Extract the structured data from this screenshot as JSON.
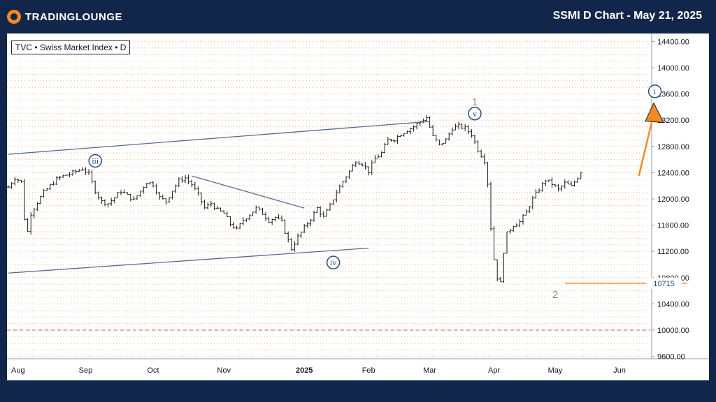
{
  "header": {
    "brand": "TRADINGLOUNGE",
    "title": "SSMI D Chart - May 21, 2025"
  },
  "symbol_label": "TVC • Swiss Market Index • D",
  "chart_data": {
    "type": "bar",
    "subtype": "ohlc",
    "ylim": [
      9500,
      14500
    ],
    "grid": true,
    "price_ticks": [
      "14400.00",
      "14000.00",
      "13600.00",
      "13200.00",
      "12800.00",
      "12400.00",
      "12000.00",
      "11600.00",
      "11200.00",
      "10800.00",
      "10400.00",
      "10000.00",
      "9600.00"
    ],
    "time_ticks": [
      "Aug",
      "Sep",
      "Oct",
      "Nov",
      "2025",
      "Feb",
      "Mar",
      "Apr",
      "May",
      "Jun"
    ],
    "x_index_ticks": [
      3,
      24,
      45,
      67,
      92,
      112,
      131,
      151,
      170,
      190
    ],
    "price_series": [
      [
        0,
        12180
      ],
      [
        2,
        12320
      ],
      [
        4,
        12260
      ],
      [
        5,
        11700
      ],
      [
        6,
        11500
      ],
      [
        7,
        11780
      ],
      [
        9,
        11950
      ],
      [
        11,
        12100
      ],
      [
        13,
        12200
      ],
      [
        15,
        12300
      ],
      [
        17,
        12350
      ],
      [
        19,
        12380
      ],
      [
        21,
        12420
      ],
      [
        23,
        12460
      ],
      [
        25,
        12380
      ],
      [
        27,
        12120
      ],
      [
        29,
        11960
      ],
      [
        31,
        11930
      ],
      [
        33,
        12020
      ],
      [
        35,
        12120
      ],
      [
        37,
        12050
      ],
      [
        39,
        11980
      ],
      [
        41,
        12120
      ],
      [
        43,
        12260
      ],
      [
        45,
        12220
      ],
      [
        47,
        12020
      ],
      [
        49,
        11960
      ],
      [
        51,
        12130
      ],
      [
        53,
        12280
      ],
      [
        55,
        12320
      ],
      [
        57,
        12220
      ],
      [
        59,
        12060
      ],
      [
        61,
        11860
      ],
      [
        63,
        11930
      ],
      [
        65,
        11830
      ],
      [
        67,
        11780
      ],
      [
        69,
        11620
      ],
      [
        71,
        11530
      ],
      [
        73,
        11680
      ],
      [
        75,
        11760
      ],
      [
        77,
        11860
      ],
      [
        79,
        11780
      ],
      [
        81,
        11670
      ],
      [
        83,
        11720
      ],
      [
        85,
        11650
      ],
      [
        86,
        11500
      ],
      [
        88,
        11240
      ],
      [
        90,
        11420
      ],
      [
        92,
        11560
      ],
      [
        94,
        11700
      ],
      [
        96,
        11860
      ],
      [
        98,
        11720
      ],
      [
        100,
        11900
      ],
      [
        102,
        12100
      ],
      [
        104,
        12270
      ],
      [
        106,
        12420
      ],
      [
        108,
        12580
      ],
      [
        110,
        12540
      ],
      [
        112,
        12420
      ],
      [
        114,
        12620
      ],
      [
        116,
        12700
      ],
      [
        118,
        12900
      ],
      [
        120,
        12910
      ],
      [
        122,
        12990
      ],
      [
        124,
        13050
      ],
      [
        126,
        13100
      ],
      [
        128,
        13180
      ],
      [
        130,
        13240
      ],
      [
        132,
        12950
      ],
      [
        134,
        12820
      ],
      [
        136,
        12900
      ],
      [
        138,
        13080
      ],
      [
        140,
        13110
      ],
      [
        142,
        13080
      ],
      [
        144,
        12980
      ],
      [
        146,
        12750
      ],
      [
        148,
        12580
      ],
      [
        149,
        12240
      ],
      [
        150,
        11560
      ],
      [
        151,
        11080
      ],
      [
        152,
        10800
      ],
      [
        153,
        10715
      ],
      [
        154,
        11200
      ],
      [
        155,
        11470
      ],
      [
        157,
        11600
      ],
      [
        159,
        11650
      ],
      [
        161,
        11800
      ],
      [
        163,
        12000
      ],
      [
        165,
        12150
      ],
      [
        167,
        12290
      ],
      [
        169,
        12230
      ],
      [
        171,
        12140
      ],
      [
        173,
        12240
      ],
      [
        175,
        12190
      ],
      [
        177,
        12330
      ],
      [
        178,
        12420
      ]
    ],
    "trendlines": [
      {
        "from": [
          0,
          12680
        ],
        "to": [
          131,
          13180
        ]
      },
      {
        "from": [
          0,
          10870
        ],
        "to": [
          112,
          11250
        ]
      },
      {
        "from": [
          57,
          12350
        ],
        "to": [
          92,
          11860
        ]
      }
    ],
    "wave_labels": [
      {
        "text": "iii",
        "x": 27,
        "y": 12580,
        "circled": true
      },
      {
        "text": "iv",
        "x": 101,
        "y": 11030,
        "circled": true
      },
      {
        "text": "v",
        "x": 145,
        "y": 13300,
        "circled": true
      },
      {
        "text": "1",
        "x": 145,
        "y": 13480,
        "circled": false
      },
      {
        "text": "2",
        "x": 170,
        "y": 10540,
        "circled": false
      },
      {
        "text": "i",
        "x": 201,
        "y": 13640,
        "circled": true
      }
    ],
    "projection_arrow": {
      "from": [
        196,
        12350
      ],
      "to": [
        200,
        13250
      ]
    },
    "support_level": {
      "value": 10715,
      "label": "10715",
      "x_from": 173,
      "x_to": 211
    },
    "dashed_level": 10000
  }
}
